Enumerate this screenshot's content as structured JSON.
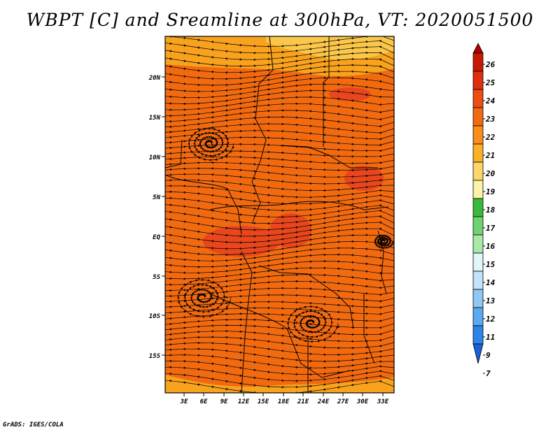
{
  "title": "WBPT [C] and Sreamline at 300hPa, VT: 2020051500",
  "credit": "GrADS: IGES/COLA",
  "map": {
    "lat_labels": [
      "20N",
      "15N",
      "10N",
      "5N",
      "EQ",
      "5S",
      "10S",
      "15S"
    ],
    "lon_labels": [
      "3E",
      "6E",
      "9E",
      "12E",
      "15E",
      "18E",
      "21E",
      "24E",
      "27E",
      "30E",
      "33E"
    ],
    "field_colors": {
      "base": "#f26a10",
      "warm": "#e8461c",
      "cool": "#f8a21e",
      "coolest": "#fbc74a"
    }
  },
  "colorbar": {
    "labels": [
      "26",
      "25",
      "24",
      "23",
      "22",
      "21",
      "20",
      "19",
      "18",
      "17",
      "16",
      "15",
      "14",
      "13",
      "12",
      "11",
      "9",
      "7"
    ],
    "colors": [
      "#b00000",
      "#c81a00",
      "#e02e0e",
      "#ee4d12",
      "#f26a10",
      "#f98e18",
      "#fbb028",
      "#fcd668",
      "#fdf3a8",
      "#3aba3a",
      "#6fd46f",
      "#a8e8a8",
      "#e0f6f8",
      "#c4e2f8",
      "#90c8f4",
      "#5aaaf0",
      "#2c86e8",
      "#1a60d8"
    ]
  }
}
